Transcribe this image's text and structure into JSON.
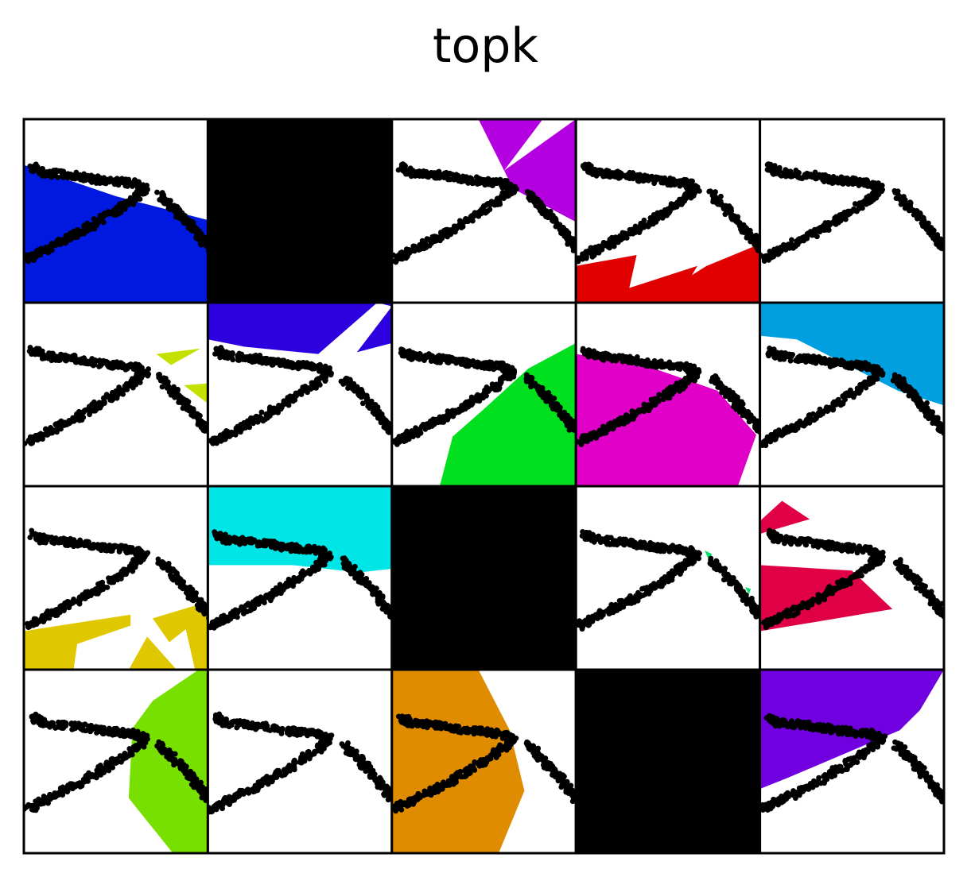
{
  "title": "topk",
  "grid": {
    "rows": 4,
    "cols": 5
  },
  "point_color": "#000000",
  "panels": [
    {
      "index": 0,
      "fill": "#0019e0",
      "blank": false,
      "region": "blue-bottom-left"
    },
    {
      "index": 1,
      "fill": "#000000",
      "blank": true,
      "region": "all-black"
    },
    {
      "index": 2,
      "fill": "#b400e0",
      "blank": false,
      "region": "purple-top-right"
    },
    {
      "index": 3,
      "fill": "#e00000",
      "blank": false,
      "region": "red-bottom"
    },
    {
      "index": 4,
      "fill": "#ffffff",
      "blank": false,
      "region": "empty"
    },
    {
      "index": 5,
      "fill": "#c3e000",
      "blank": false,
      "region": "yellow-green-small"
    },
    {
      "index": 6,
      "fill": "#2d00e0",
      "blank": false,
      "region": "indigo-top"
    },
    {
      "index": 7,
      "fill": "#00e01e",
      "blank": false,
      "region": "green-bottom-right"
    },
    {
      "index": 8,
      "fill": "#e000c8",
      "blank": false,
      "region": "magenta-bottom"
    },
    {
      "index": 9,
      "fill": "#00a0e0",
      "blank": false,
      "region": "sky-top-right"
    },
    {
      "index": 10,
      "fill": "#e0c800",
      "blank": false,
      "region": "yellow-bottom"
    },
    {
      "index": 11,
      "fill": "#00e6e6",
      "blank": false,
      "region": "cyan-top"
    },
    {
      "index": 12,
      "fill": "#000000",
      "blank": true,
      "region": "all-black"
    },
    {
      "index": 13,
      "fill": "#00e06e",
      "blank": false,
      "region": "green-tiny"
    },
    {
      "index": 14,
      "fill": "#e00046",
      "blank": false,
      "region": "crimson-left"
    },
    {
      "index": 15,
      "fill": "#78e000",
      "blank": false,
      "region": "lime-right"
    },
    {
      "index": 16,
      "fill": "#ffffff",
      "blank": false,
      "region": "empty"
    },
    {
      "index": 17,
      "fill": "#e08c00",
      "blank": false,
      "region": "orange-left"
    },
    {
      "index": 18,
      "fill": "#000000",
      "blank": true,
      "region": "all-black"
    },
    {
      "index": 19,
      "fill": "#7000e0",
      "blank": false,
      "region": "violet-top-left"
    }
  ]
}
